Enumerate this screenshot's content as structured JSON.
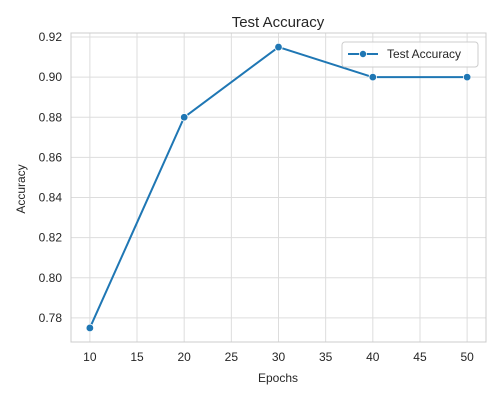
{
  "chart_data": {
    "type": "line",
    "title": "Test Accuracy",
    "xlabel": "Epochs",
    "ylabel": "Accuracy",
    "x": [
      10,
      20,
      30,
      40,
      50
    ],
    "series": [
      {
        "name": "Test Accuracy",
        "values": [
          0.775,
          0.88,
          0.915,
          0.9,
          0.9
        ],
        "color": "#1f77b4"
      }
    ],
    "xticks": [
      10,
      15,
      20,
      25,
      30,
      35,
      40,
      45,
      50
    ],
    "yticks": [
      0.78,
      0.8,
      0.82,
      0.84,
      0.86,
      0.88,
      0.9,
      0.92
    ],
    "xlim": [
      8,
      52
    ],
    "ylim": [
      0.768,
      0.922
    ],
    "grid": true,
    "legend": "top-right",
    "markers": true
  }
}
